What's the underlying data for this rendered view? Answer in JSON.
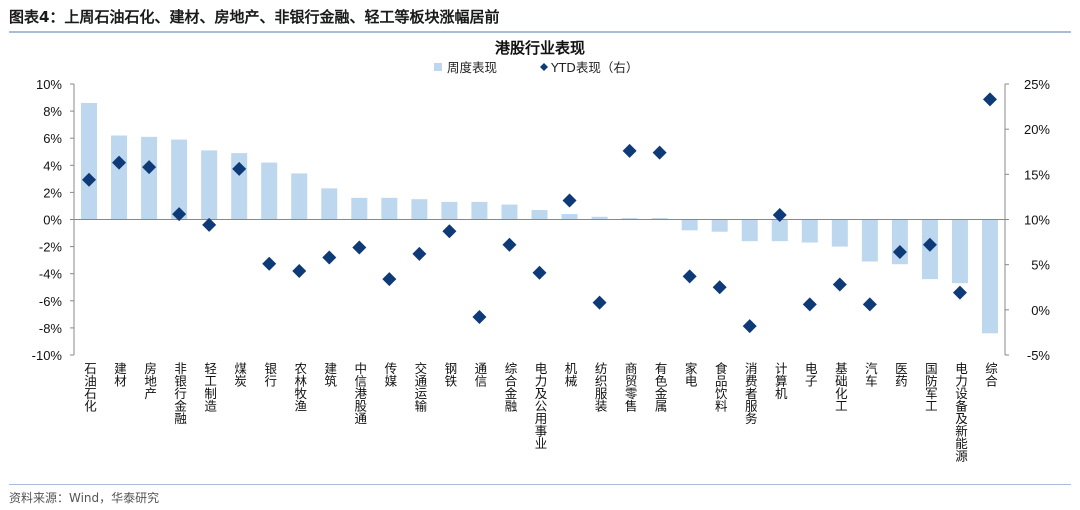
{
  "heading": "图表4：上周石油石化、建材、房地产、非银行金融、轻工等板块涨幅居前",
  "source": "资料来源：Wind，华泰研究",
  "colors": {
    "bar": "#bdd7ee",
    "marker": "#0e3a78"
  },
  "chart_data": {
    "type": "bar+scatter",
    "title": "港股行业表现",
    "legend": [
      "周度表现",
      "YTD表现（右）"
    ],
    "legend_position": "top-center",
    "categories": [
      "石油石化",
      "建材",
      "房地产",
      "非银行金融",
      "轻工制造",
      "煤炭",
      "银行",
      "农林牧渔",
      "建筑",
      "中信港股通",
      "传媒",
      "交通运输",
      "钢铁",
      "通信",
      "综合金融",
      "电力及公用事业",
      "机械",
      "纺织服装",
      "商贸零售",
      "有色金属",
      "家电",
      "食品饮料",
      "消费者服务",
      "计算机",
      "电子",
      "基础化工",
      "汽车",
      "医药",
      "国防军工",
      "电力设备及新能源",
      "综合"
    ],
    "series": [
      {
        "name": "周度表现",
        "axis": "left",
        "type": "bar",
        "values": [
          8.6,
          6.2,
          6.1,
          5.9,
          5.1,
          4.9,
          4.2,
          3.4,
          2.3,
          1.6,
          1.6,
          1.5,
          1.3,
          1.3,
          1.1,
          0.7,
          0.4,
          0.2,
          0.1,
          0.1,
          -0.8,
          -0.9,
          -1.6,
          -1.6,
          -1.7,
          -2.0,
          -3.1,
          -3.3,
          -4.4,
          -4.7,
          -8.4
        ]
      },
      {
        "name": "YTD表现（右）",
        "axis": "right",
        "type": "scatter",
        "values": [
          14.4,
          16.3,
          15.8,
          10.6,
          9.4,
          15.6,
          5.1,
          4.3,
          5.8,
          6.9,
          3.4,
          6.2,
          8.7,
          -0.8,
          7.2,
          4.1,
          12.1,
          0.8,
          17.6,
          17.4,
          3.7,
          2.5,
          -1.8,
          10.5,
          0.6,
          2.8,
          0.6,
          6.4,
          7.2,
          1.9,
          23.3
        ]
      }
    ],
    "yleft": {
      "min": -10,
      "max": 10,
      "ticks": [
        "10%",
        "8%",
        "6%",
        "4%",
        "2%",
        "0%",
        "-2%",
        "-4%",
        "-6%",
        "-8%",
        "-10%"
      ]
    },
    "yright": {
      "min": -5,
      "max": 25,
      "ticks": [
        "25%",
        "20%",
        "15%",
        "10%",
        "5%",
        "0%",
        "-5%"
      ]
    }
  }
}
